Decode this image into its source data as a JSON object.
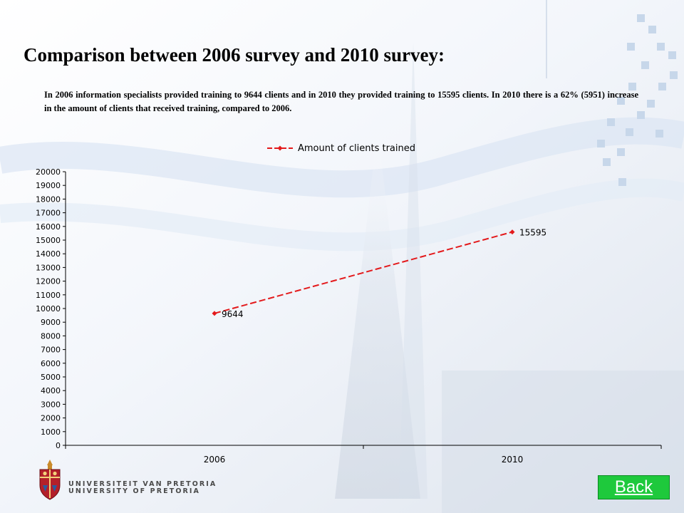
{
  "slide": {
    "title": "Comparison between 2006 survey and 2010 survey:",
    "paragraph": "In 2006 information specialists provided training to 9644 clients and in 2010 they provided training to 15595 clients. In 2010 there is a 62% (5951) increase in the amount of clients that received training, compared to 2006."
  },
  "chart_data": {
    "type": "line",
    "categories": [
      "2006",
      "2010"
    ],
    "series": [
      {
        "name": "Amount of clients trained",
        "values": [
          9644,
          15595
        ],
        "color": "#e31a1c"
      }
    ],
    "data_labels": [
      "9644",
      "15595"
    ],
    "ylim": [
      0,
      20000
    ],
    "ystep": 1000,
    "legend": "top-center",
    "grid": false
  },
  "logo": {
    "line1": "UNIVERSITEIT VAN PRETORIA",
    "line2": "UNIVERSITY OF PRETORIA"
  },
  "nav": {
    "back_label": "Back"
  }
}
